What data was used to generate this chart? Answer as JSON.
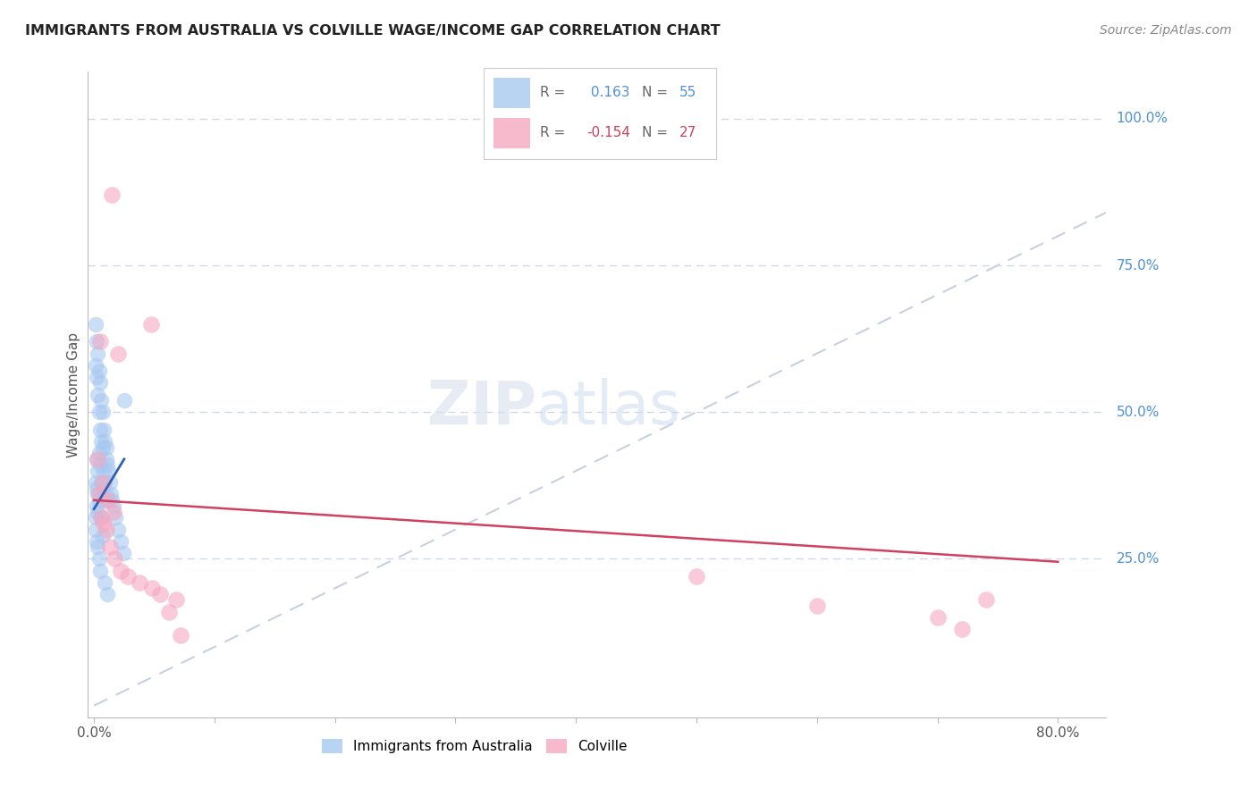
{
  "title": "IMMIGRANTS FROM AUSTRALIA VS COLVILLE WAGE/INCOME GAP CORRELATION CHART",
  "source": "Source: ZipAtlas.com",
  "ylabel": "Wage/Income Gap",
  "R_blue": 0.163,
  "N_blue": 55,
  "R_pink": -0.154,
  "N_pink": 27,
  "x_min": 0.0,
  "x_max": 0.8,
  "y_min": 0.0,
  "y_max": 1.05,
  "blue_color": "#a8c8f0",
  "pink_color": "#f5a8c0",
  "blue_line_color": "#3060b0",
  "pink_line_color": "#d04060",
  "diag_color": "#c8d0e0",
  "grid_color": "#d0d8e8",
  "title_color": "#222222",
  "right_label_color": "#5090d0",
  "source_color": "#888888",
  "background": "#ffffff",
  "blue_x": [
    0.001,
    0.001,
    0.001,
    0.002,
    0.002,
    0.002,
    0.002,
    0.002,
    0.003,
    0.003,
    0.003,
    0.003,
    0.004,
    0.004,
    0.004,
    0.004,
    0.005,
    0.005,
    0.005,
    0.006,
    0.006,
    0.006,
    0.007,
    0.007,
    0.007,
    0.008,
    0.008,
    0.009,
    0.009,
    0.01,
    0.01,
    0.01,
    0.011,
    0.012,
    0.012,
    0.013,
    0.014,
    0.015,
    0.016,
    0.018,
    0.02,
    0.022,
    0.024,
    0.001,
    0.001,
    0.002,
    0.003,
    0.003,
    0.004,
    0.005,
    0.006,
    0.007,
    0.009,
    0.011,
    0.025
  ],
  "blue_y": [
    0.65,
    0.58,
    0.38,
    0.62,
    0.56,
    0.42,
    0.37,
    0.34,
    0.6,
    0.53,
    0.4,
    0.36,
    0.57,
    0.5,
    0.43,
    0.35,
    0.55,
    0.47,
    0.41,
    0.52,
    0.45,
    0.38,
    0.5,
    0.44,
    0.37,
    0.47,
    0.4,
    0.45,
    0.38,
    0.44,
    0.42,
    0.36,
    0.41,
    0.4,
    0.35,
    0.38,
    0.36,
    0.35,
    0.34,
    0.32,
    0.3,
    0.28,
    0.26,
    0.32,
    0.3,
    0.28,
    0.33,
    0.27,
    0.25,
    0.23,
    0.32,
    0.29,
    0.21,
    0.19,
    0.52
  ],
  "pink_x": [
    0.015,
    0.005,
    0.02,
    0.007,
    0.011,
    0.016,
    0.003,
    0.004,
    0.006,
    0.008,
    0.01,
    0.013,
    0.017,
    0.022,
    0.038,
    0.048,
    0.5,
    0.6,
    0.72,
    0.7,
    0.74,
    0.055,
    0.062,
    0.028,
    0.068,
    0.072,
    0.047
  ],
  "pink_y": [
    0.87,
    0.62,
    0.6,
    0.38,
    0.35,
    0.33,
    0.42,
    0.36,
    0.32,
    0.31,
    0.3,
    0.27,
    0.25,
    0.23,
    0.21,
    0.2,
    0.22,
    0.17,
    0.13,
    0.15,
    0.18,
    0.19,
    0.16,
    0.22,
    0.18,
    0.12,
    0.65
  ],
  "pink_line_start_y": 0.35,
  "pink_line_end_y": 0.245,
  "blue_line_x_end": 0.025,
  "blue_line_start_y": 0.335,
  "blue_line_end_y": 0.42
}
